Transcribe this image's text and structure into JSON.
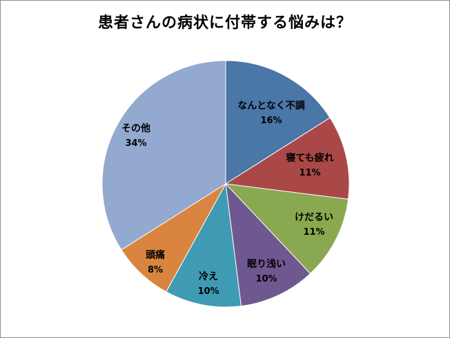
{
  "chart_data": {
    "type": "pie",
    "title": "患者さんの病状に付帯する悩みは？",
    "categories": [
      "なんとなく不調",
      "寝ても疲れ",
      "けだるい",
      "眠り浅い",
      "冷え",
      "頭痛",
      "その他"
    ],
    "values": [
      16,
      11,
      11,
      10,
      10,
      8,
      34
    ],
    "value_labels": [
      "16%",
      "11%",
      "11%",
      "10%",
      "10%",
      "8%",
      "34%"
    ],
    "colors": [
      "#4a76a8",
      "#a94846",
      "#8aa84f",
      "#6f5890",
      "#3f9bb3",
      "#d9853f",
      "#94a9d0"
    ],
    "start_angle_deg": 0,
    "direction": "clockwise",
    "legend": "none"
  }
}
